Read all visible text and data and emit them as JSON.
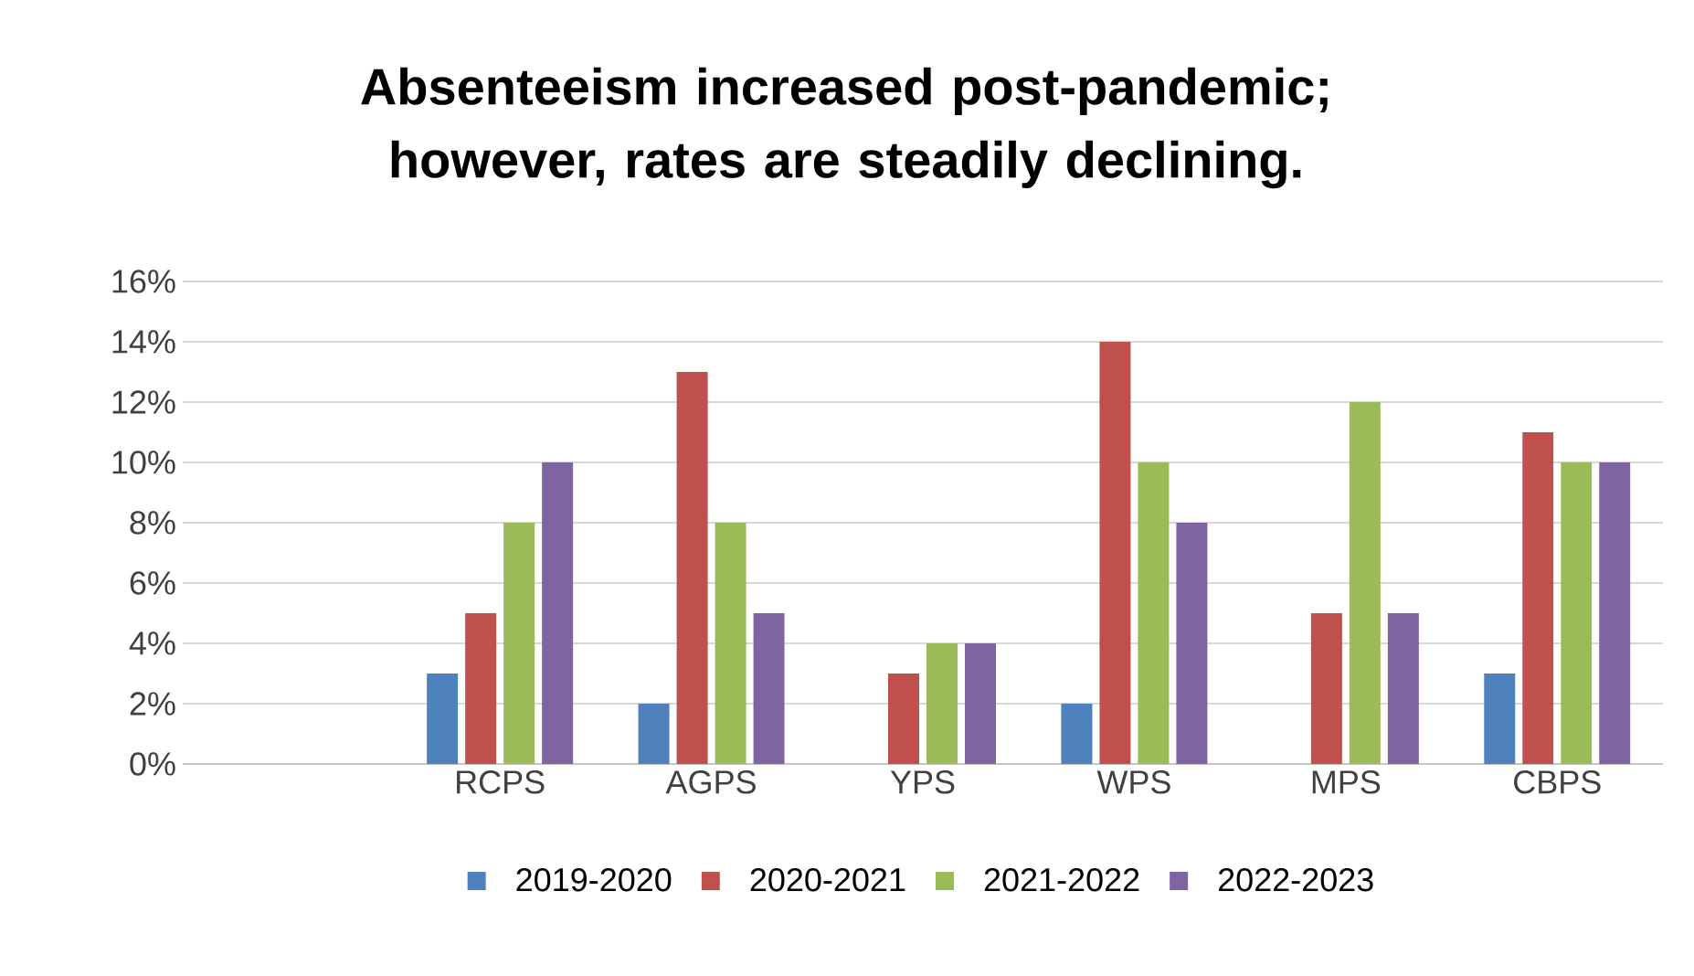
{
  "chart_data": {
    "type": "bar",
    "title": "Absenteeism increased post-pandemic; however, rates are steadily declining.",
    "categories": [
      null,
      "RCPS",
      "AGPS",
      "YPS",
      "WPS",
      "MPS",
      "CBPS"
    ],
    "series": [
      {
        "name": "2019-2020",
        "color": "#4f81bd",
        "values": [
          null,
          3,
          2,
          null,
          2,
          null,
          3
        ]
      },
      {
        "name": "2020-2021",
        "color": "#c0504d",
        "values": [
          null,
          5,
          13,
          3,
          14,
          5,
          11
        ]
      },
      {
        "name": "2021-2022",
        "color": "#9bbb59",
        "values": [
          null,
          8,
          8,
          4,
          10,
          12,
          10
        ]
      },
      {
        "name": "2022-2023",
        "color": "#8064a2",
        "values": [
          null,
          10,
          5,
          4,
          8,
          5,
          10
        ]
      }
    ],
    "ylim": [
      0,
      16
    ],
    "yticks": [
      {
        "value": 0,
        "label": "0%"
      },
      {
        "value": 2,
        "label": "2%"
      },
      {
        "value": 4,
        "label": "4%"
      },
      {
        "value": 6,
        "label": "6%"
      },
      {
        "value": 8,
        "label": "8%"
      },
      {
        "value": 10,
        "label": "10%"
      },
      {
        "value": 12,
        "label": "12%"
      },
      {
        "value": 14,
        "label": "14%"
      },
      {
        "value": 16,
        "label": "16%"
      }
    ],
    "grid": "y",
    "legend": "bottom"
  }
}
